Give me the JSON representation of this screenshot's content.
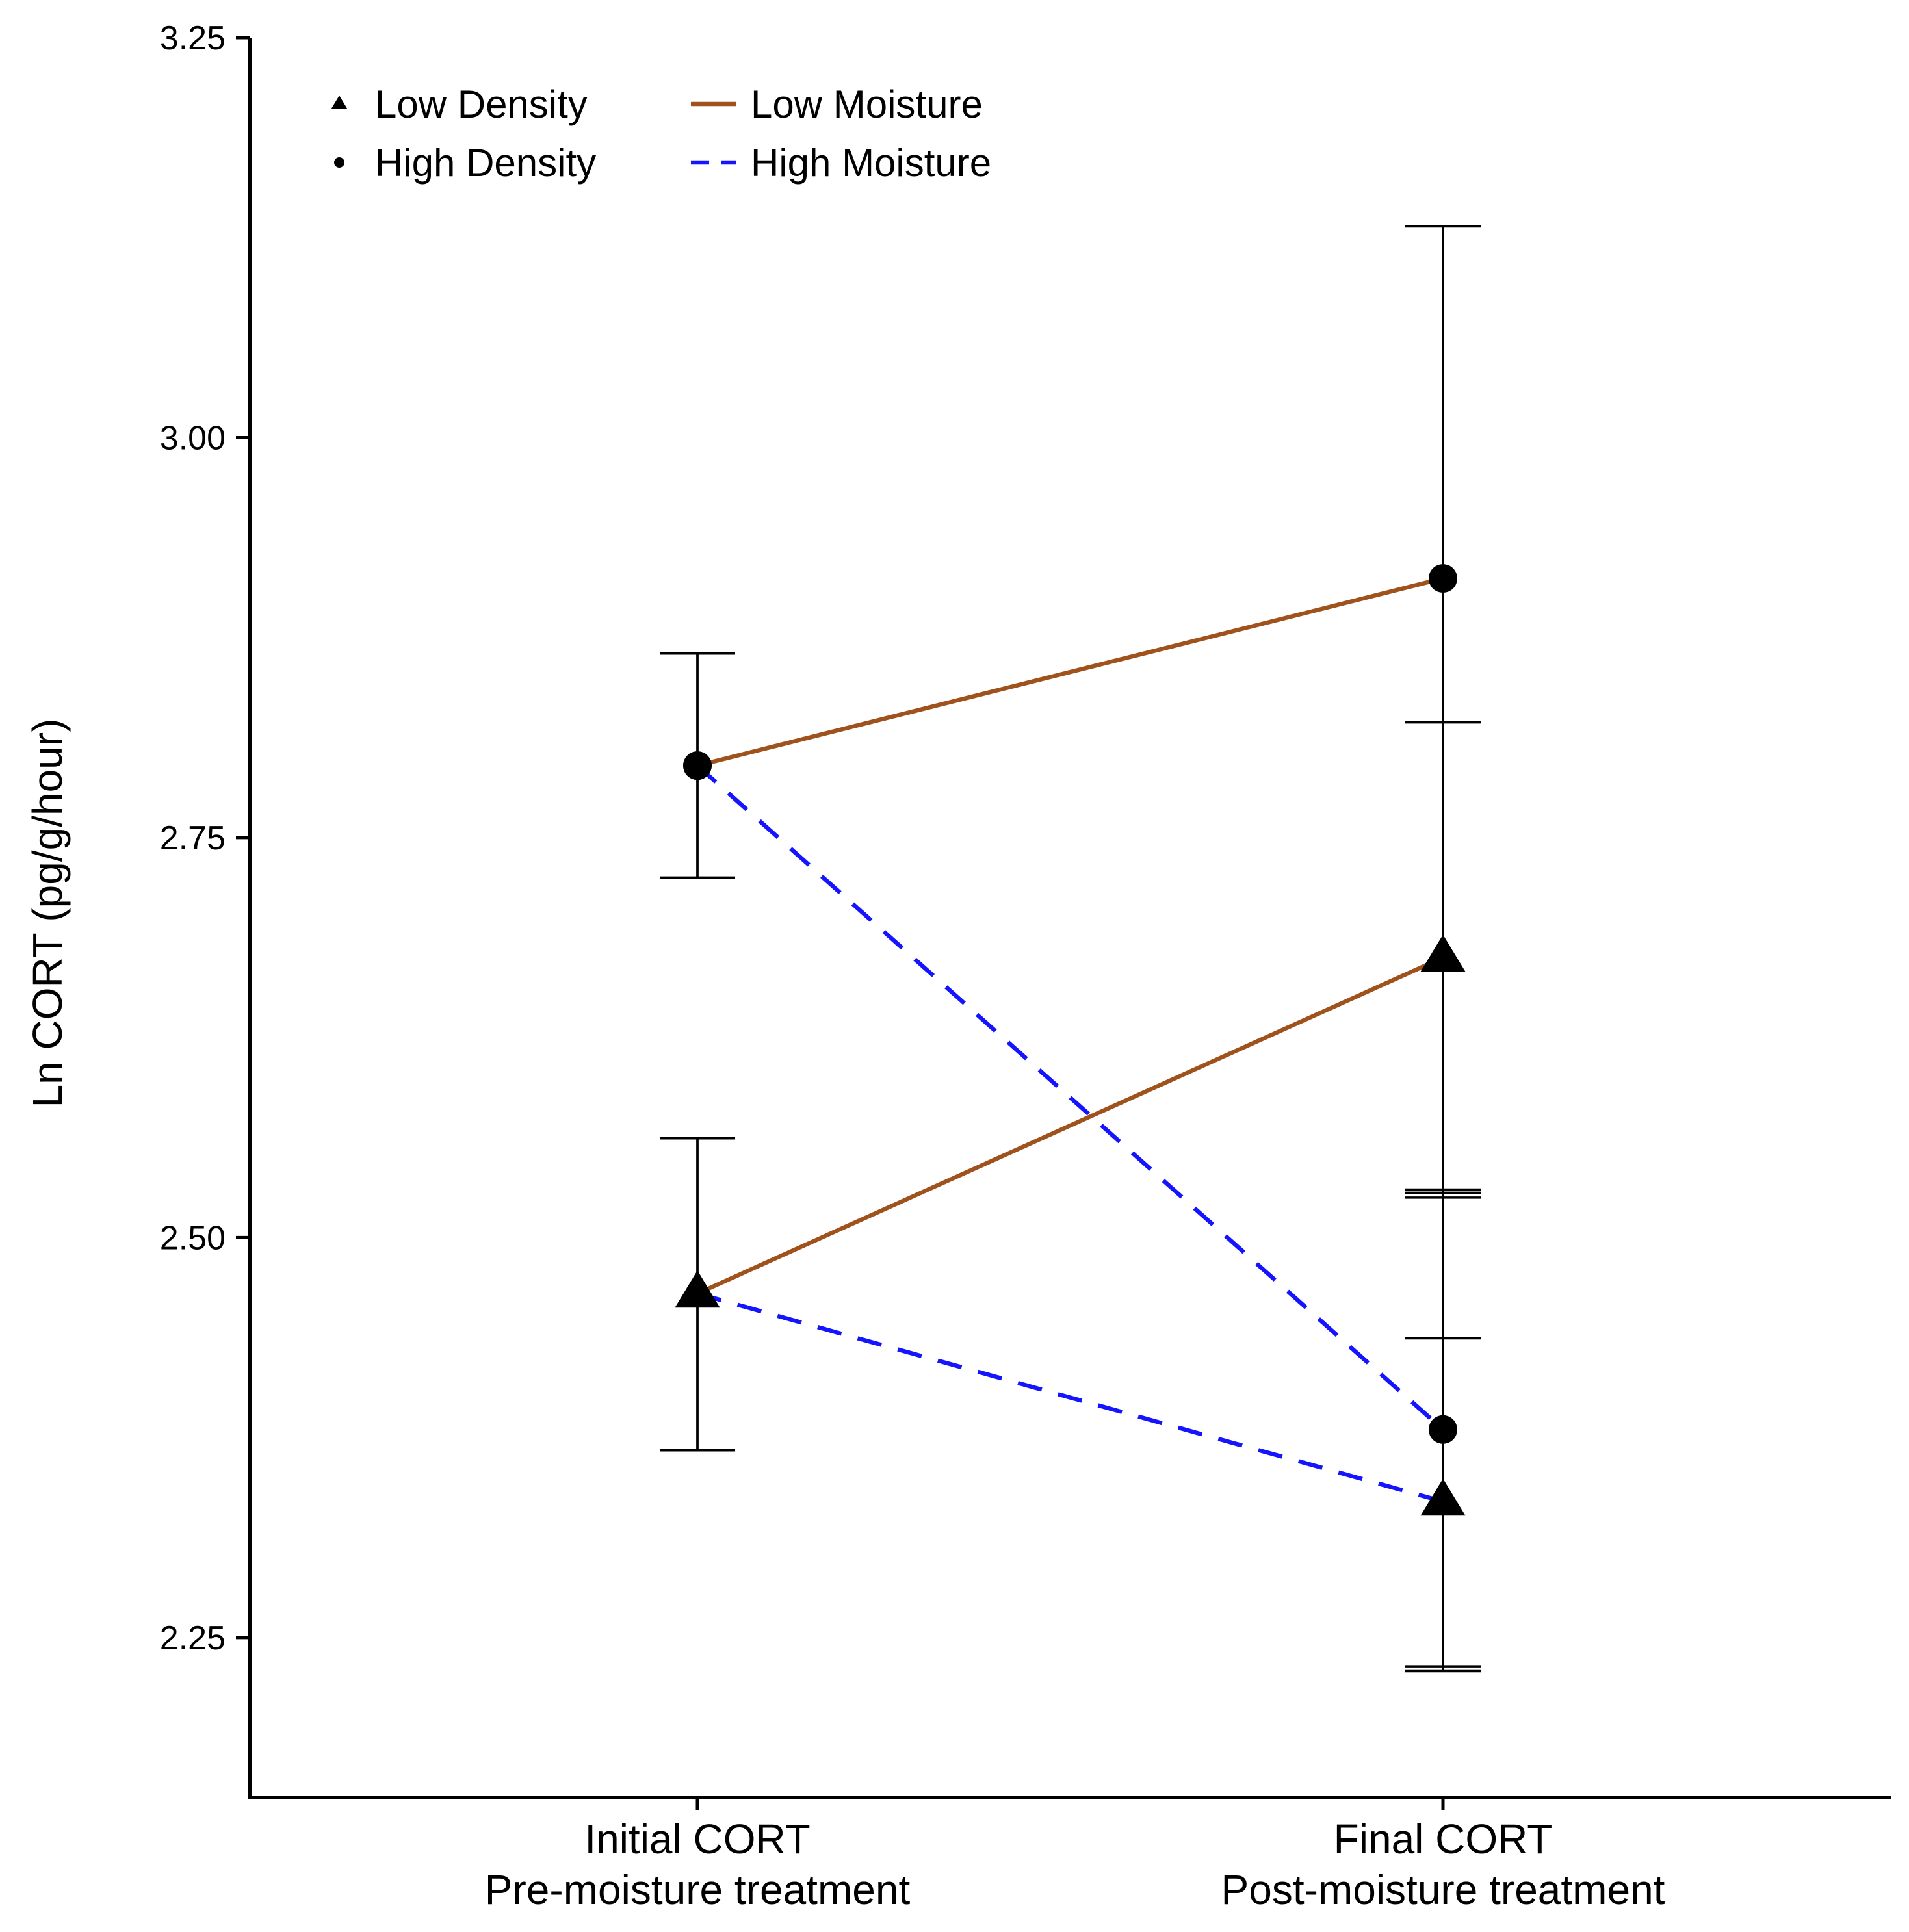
{
  "chart_data": {
    "type": "line",
    "title": "",
    "ylabel": "Ln CORT (pg/g/hour)",
    "xlabel": "",
    "ylim": [
      2.15,
      3.25
    ],
    "yticks": [
      "2.25",
      "2.50",
      "2.75",
      "3.00",
      "3.25"
    ],
    "categories": [
      {
        "line1": "Initial CORT",
        "line2": "Pre-moisture treatment"
      },
      {
        "line1": "Final CORT",
        "line2": "Post-moisture treatment"
      }
    ],
    "series": [
      {
        "name": "High Density, Low Moisture",
        "density": "High Density",
        "moisture": "Low Moisture",
        "marker": "circle",
        "color": "#a0521d",
        "dash": "solid",
        "values": [
          2.795,
          2.912
        ],
        "error_low": [
          2.725,
          2.525
        ],
        "error_high": [
          2.865,
          3.132
        ]
      },
      {
        "name": "High Density, High Moisture",
        "density": "High Density",
        "moisture": "High Moisture",
        "marker": "circle",
        "color": "#1414ff",
        "dash": "dashed",
        "values": [
          2.795,
          2.38
        ],
        "error_low": [
          2.725,
          2.232
        ],
        "error_high": [
          2.865,
          2.528
        ]
      },
      {
        "name": "Low Density, Low Moisture",
        "density": "Low Density",
        "moisture": "Low Moisture",
        "marker": "triangle",
        "color": "#a0521d",
        "dash": "solid",
        "values": [
          2.465,
          2.675
        ],
        "error_low": [
          2.367,
          2.53
        ],
        "error_high": [
          2.562,
          2.822
        ]
      },
      {
        "name": "Low Density, High Moisture",
        "density": "Low Density",
        "moisture": "High Moisture",
        "marker": "triangle",
        "color": "#1414ff",
        "dash": "dashed",
        "values": [
          2.465,
          2.335
        ],
        "error_low": [
          2.367,
          2.229
        ],
        "error_high": [
          2.562,
          2.437
        ]
      }
    ],
    "legend": {
      "position": "top-left",
      "shapes": [
        {
          "label": "Low Density",
          "marker": "triangle"
        },
        {
          "label": "High Density",
          "marker": "circle"
        }
      ],
      "lines": [
        {
          "label": "Low Moisture",
          "color": "#a0521d",
          "dash": "solid"
        },
        {
          "label": "High Moisture",
          "color": "#1414ff",
          "dash": "dashed"
        }
      ]
    }
  }
}
